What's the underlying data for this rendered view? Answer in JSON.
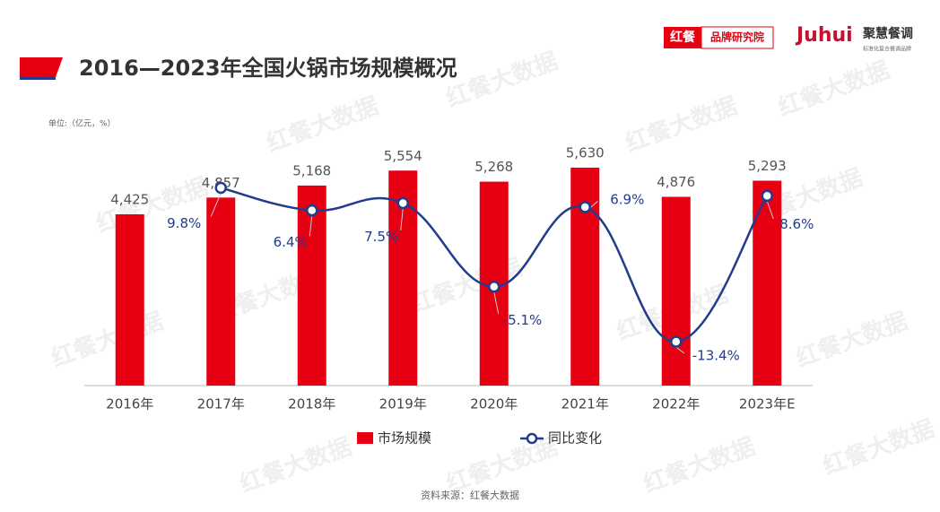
{
  "chart_data": {
    "type": "bar",
    "title": "2016—2023年全国火锅市场规模概况",
    "unit_note": "单位:（亿元，%）",
    "source": "资料来源：红餐大数据",
    "brand": {
      "badge": "红餐",
      "badge_label": "品牌研究院",
      "logo": "Juhui",
      "logo_name": "聚慧餐调",
      "logo_tagline": "标准化复合餐调品牌"
    },
    "watermark": "红餐大数据",
    "categories": [
      "2016年",
      "2017年",
      "2018年",
      "2019年",
      "2020年",
      "2021年",
      "2022年",
      "2023年E"
    ],
    "series": [
      {
        "name": "市场规模",
        "type": "bar",
        "color": "#e60012",
        "values": [
          4425,
          4857,
          5168,
          5554,
          5268,
          5630,
          4876,
          5293
        ],
        "value_labels": [
          "4,425",
          "4,857",
          "5,168",
          "5,554",
          "5,268",
          "5,630",
          "4,876",
          "5,293"
        ]
      },
      {
        "name": "同比变化",
        "type": "line",
        "axis": "y2",
        "color": "#233b8c",
        "values": [
          null,
          9.8,
          6.4,
          7.5,
          -5.1,
          6.9,
          -13.4,
          8.6
        ],
        "value_labels": [
          null,
          "9.8%",
          "6.4%",
          "7.5%",
          "-5.1%",
          "6.9%",
          "-13.4%",
          "8.6%"
        ]
      }
    ],
    "ylim": [
      0,
      6000
    ],
    "y2lim": [
      -20,
      15
    ],
    "grid": false,
    "legend": "bottom"
  }
}
